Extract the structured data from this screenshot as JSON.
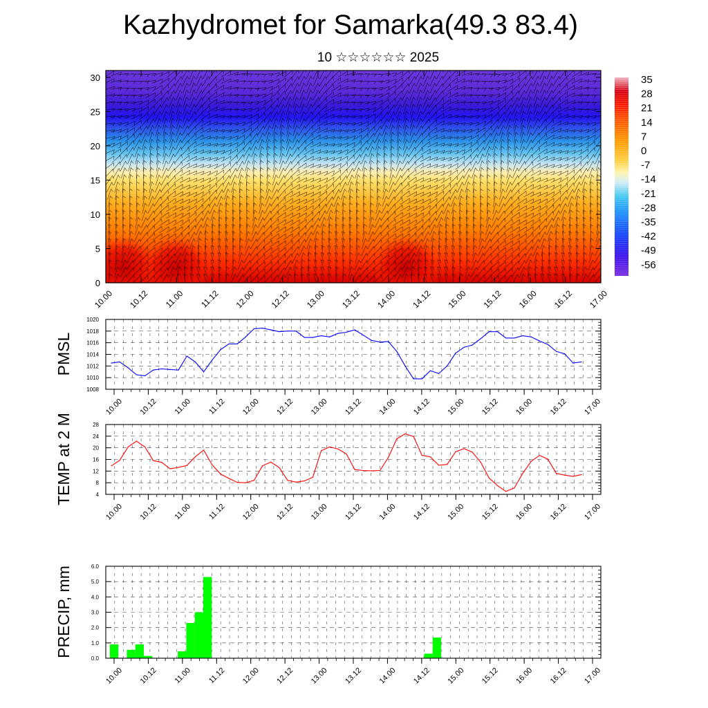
{
  "title": "Kazhydromet for Samarka(49.3 83.4)",
  "subtitle": "10 ☆☆☆☆☆☆ 2025",
  "colors": {
    "pmsl_line": "#0000ff",
    "temp_line": "#ff0000",
    "precip_bar": "#00ff00",
    "wind_barb": "#000000"
  },
  "chart_data": [
    {
      "type": "heatmap",
      "title": "",
      "xlabel": "",
      "ylabel": "",
      "x_ticks": [
        "10.00",
        "10.12",
        "11.00",
        "11.12",
        "12.00",
        "12.12",
        "13.00",
        "13.12",
        "14.00",
        "14.12",
        "15.00",
        "15.12",
        "16.00",
        "16.12",
        "17.00"
      ],
      "y_ticks": [
        0,
        5,
        10,
        15,
        20,
        25,
        30
      ],
      "ylim": [
        0,
        31
      ],
      "colorbar_labels": [
        35,
        28,
        21,
        14,
        7,
        0,
        -7,
        -14,
        -21,
        -28,
        -35,
        -42,
        -49,
        -56
      ],
      "colormap": "temperature: red/orange at low levels, yellow, light blue, blue, purple at upper levels",
      "overlay": "wind barbs",
      "warm_maxima_x": [
        "10.06",
        "11.00",
        "14.06"
      ]
    },
    {
      "type": "line",
      "ylabel": "PMSL",
      "ylim": [
        1008,
        1020
      ],
      "y_ticks": [
        1008,
        1010,
        1012,
        1014,
        1016,
        1018,
        1020
      ],
      "x_ticks": [
        "10.00",
        "10.12",
        "11.00",
        "11.12",
        "12.00",
        "12.12",
        "13.00",
        "13.12",
        "14.00",
        "14.12",
        "15.00",
        "15.12",
        "16.00",
        "16.12",
        "17.00"
      ],
      "series": [
        {
          "values": [
            1012.5,
            1012.7,
            1011.7,
            1010.5,
            1010.3,
            1011.3,
            1011.5,
            1011.4,
            1011.3,
            1013.7,
            1012.7,
            1011.0,
            1013.0,
            1014.8,
            1015.8,
            1015.8,
            1017.0,
            1018.4,
            1018.5,
            1018.2,
            1017.9,
            1018.0,
            1018.0,
            1016.9,
            1016.9,
            1017.2,
            1017.0,
            1017.6,
            1017.8,
            1018.2,
            1017.3,
            1016.4,
            1016.1,
            1016.2,
            1014.5,
            1012.0,
            1009.8,
            1009.8,
            1011.2,
            1010.7,
            1012.0,
            1014.2,
            1015.2,
            1015.6,
            1016.7,
            1017.9,
            1017.9,
            1016.8,
            1016.8,
            1017.2,
            1017.0,
            1016.3,
            1015.7,
            1014.5,
            1014.1,
            1012.5,
            1012.7
          ]
        }
      ]
    },
    {
      "type": "line",
      "ylabel": "TEMP at 2 M",
      "ylim": [
        4,
        28
      ],
      "y_ticks": [
        4,
        8,
        12,
        16,
        20,
        24,
        28
      ],
      "x_ticks": [
        "10.00",
        "10.12",
        "11.00",
        "11.12",
        "12.00",
        "12.12",
        "13.00",
        "13.12",
        "14.00",
        "14.12",
        "15.00",
        "15.12",
        "16.00",
        "16.12",
        "17.00"
      ],
      "series": [
        {
          "values": [
            13.8,
            15.7,
            20.3,
            22.3,
            20.3,
            15.6,
            15.0,
            12.8,
            13.3,
            13.9,
            16.9,
            19.2,
            14.2,
            11.0,
            9.5,
            8.1,
            8.0,
            8.8,
            13.8,
            15.1,
            13.2,
            8.8,
            8.2,
            8.6,
            9.9,
            19.0,
            20.3,
            19.6,
            17.9,
            12.5,
            12.2,
            12.1,
            12.2,
            16.7,
            23.1,
            24.8,
            23.9,
            17.4,
            16.9,
            14.0,
            14.3,
            18.6,
            19.7,
            18.5,
            15.0,
            9.6,
            7.0,
            5.0,
            6.2,
            11.2,
            15.3,
            17.4,
            16.1,
            11.2,
            10.6,
            10.2,
            10.8
          ]
        }
      ]
    },
    {
      "type": "bar",
      "ylabel": "PRECIP, mm",
      "ylim": [
        0,
        6
      ],
      "y_ticks": [
        "0.0",
        "1.0",
        "2.0",
        "3.0",
        "4.0",
        "5.0",
        "6.0"
      ],
      "x_ticks": [
        "10.00",
        "10.12",
        "11.00",
        "11.12",
        "12.00",
        "12.12",
        "13.00",
        "13.12",
        "14.00",
        "14.12",
        "15.00",
        "15.12",
        "16.00",
        "16.12",
        "17.00"
      ],
      "values": [
        0.9,
        0,
        0.55,
        0.9,
        0.15,
        0,
        0,
        0,
        0.45,
        2.3,
        3.0,
        5.3,
        0,
        0,
        0,
        0,
        0,
        0,
        0,
        0,
        0,
        0,
        0,
        0,
        0,
        0,
        0,
        0,
        0,
        0,
        0,
        0,
        0,
        0,
        0,
        0,
        0,
        0.3,
        1.35,
        0,
        0,
        0,
        0,
        0,
        0,
        0,
        0,
        0,
        0,
        0,
        0,
        0,
        0,
        0,
        0,
        0,
        0
      ]
    }
  ]
}
